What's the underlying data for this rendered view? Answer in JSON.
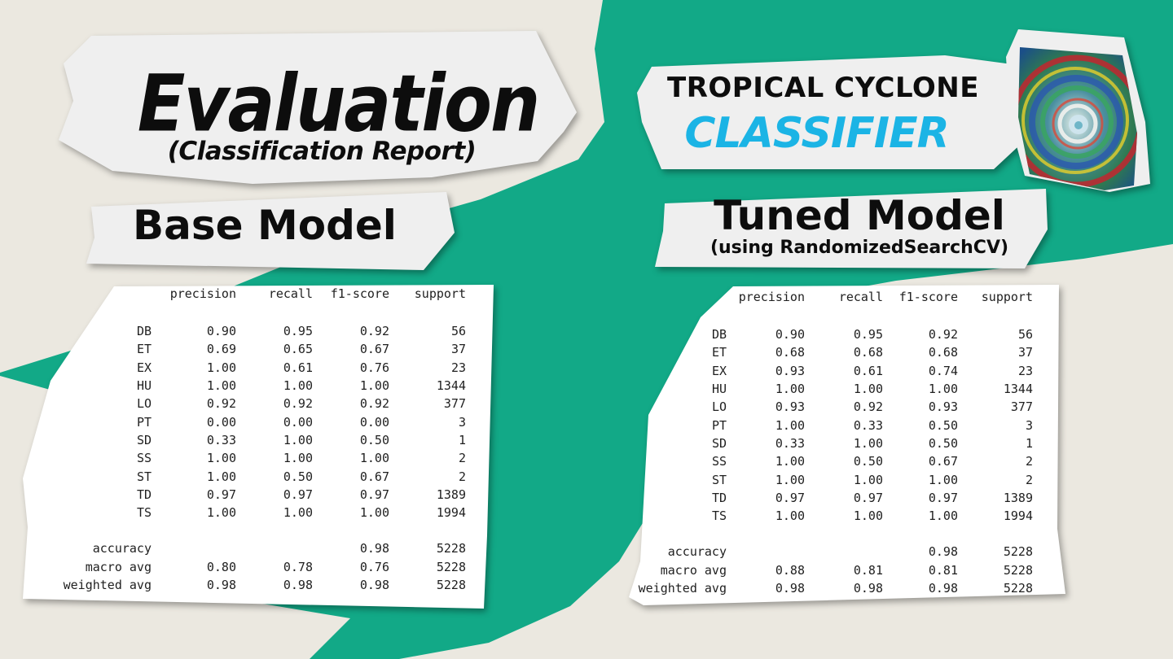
{
  "header": {
    "title": "Evaluation",
    "subtitle": "(Classification Report)"
  },
  "brand": {
    "line1": "TROPICAL CYCLONE",
    "line2": "CLASSIFIER",
    "image_icon": "swirl-painting-icon",
    "accent_color": "#1bb4e5"
  },
  "colors": {
    "background": "#ebe8e0",
    "green": "#12a987",
    "paper": "#efefef"
  },
  "base": {
    "title": "Base Model",
    "report": {
      "columns": [
        "",
        "precision",
        "recall",
        "f1-score",
        "support"
      ],
      "rows": [
        [
          "DB",
          "0.90",
          "0.95",
          "0.92",
          "56"
        ],
        [
          "ET",
          "0.69",
          "0.65",
          "0.67",
          "37"
        ],
        [
          "EX",
          "1.00",
          "0.61",
          "0.76",
          "23"
        ],
        [
          "HU",
          "1.00",
          "1.00",
          "1.00",
          "1344"
        ],
        [
          "LO",
          "0.92",
          "0.92",
          "0.92",
          "377"
        ],
        [
          "PT",
          "0.00",
          "0.00",
          "0.00",
          "3"
        ],
        [
          "SD",
          "0.33",
          "1.00",
          "0.50",
          "1"
        ],
        [
          "SS",
          "1.00",
          "1.00",
          "1.00",
          "2"
        ],
        [
          "ST",
          "1.00",
          "0.50",
          "0.67",
          "2"
        ],
        [
          "TD",
          "0.97",
          "0.97",
          "0.97",
          "1389"
        ],
        [
          "TS",
          "1.00",
          "1.00",
          "1.00",
          "1994"
        ]
      ],
      "summary": [
        [
          "accuracy",
          "",
          "",
          "0.98",
          "5228"
        ],
        [
          "macro avg",
          "0.80",
          "0.78",
          "0.76",
          "5228"
        ],
        [
          "weighted avg",
          "0.98",
          "0.98",
          "0.98",
          "5228"
        ]
      ]
    }
  },
  "tuned": {
    "title": "Tuned Model",
    "subtitle": "(using RandomizedSearchCV)",
    "report": {
      "columns": [
        "",
        "precision",
        "recall",
        "f1-score",
        "support"
      ],
      "rows": [
        [
          "DB",
          "0.90",
          "0.95",
          "0.92",
          "56"
        ],
        [
          "ET",
          "0.68",
          "0.68",
          "0.68",
          "37"
        ],
        [
          "EX",
          "0.93",
          "0.61",
          "0.74",
          "23"
        ],
        [
          "HU",
          "1.00",
          "1.00",
          "1.00",
          "1344"
        ],
        [
          "LO",
          "0.93",
          "0.92",
          "0.93",
          "377"
        ],
        [
          "PT",
          "1.00",
          "0.33",
          "0.50",
          "3"
        ],
        [
          "SD",
          "0.33",
          "1.00",
          "0.50",
          "1"
        ],
        [
          "SS",
          "1.00",
          "0.50",
          "0.67",
          "2"
        ],
        [
          "ST",
          "1.00",
          "1.00",
          "1.00",
          "2"
        ],
        [
          "TD",
          "0.97",
          "0.97",
          "0.97",
          "1389"
        ],
        [
          "TS",
          "1.00",
          "1.00",
          "1.00",
          "1994"
        ]
      ],
      "summary": [
        [
          "accuracy",
          "",
          "",
          "0.98",
          "5228"
        ],
        [
          "macro avg",
          "0.88",
          "0.81",
          "0.81",
          "5228"
        ],
        [
          "weighted avg",
          "0.98",
          "0.98",
          "0.98",
          "5228"
        ]
      ]
    }
  }
}
